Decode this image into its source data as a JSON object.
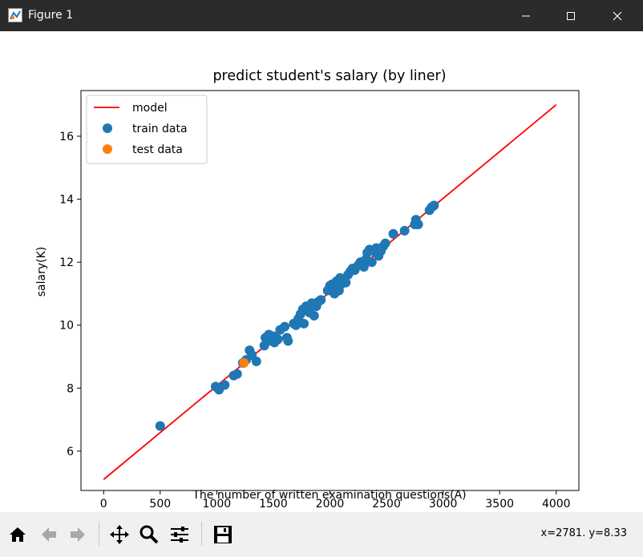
{
  "window": {
    "title": "Figure 1",
    "title_bar_color": "#2b2b2b"
  },
  "chart_data": {
    "type": "scatter",
    "title": "predict student's salary (by liner)",
    "xlabel": "The number of written examination questions(A)",
    "ylabel": "salary(K)",
    "xlim": [
      -200,
      4200
    ],
    "ylim": [
      4.75,
      17.45
    ],
    "xticks": [
      0,
      500,
      1000,
      1500,
      2000,
      2500,
      3000,
      3500,
      4000
    ],
    "yticks": [
      6,
      8,
      10,
      12,
      14,
      16
    ],
    "grid": false,
    "legend_position": "top-left",
    "legend": [
      "model",
      "train data",
      "test data"
    ],
    "model_line": {
      "name": "model",
      "color": "#ff0000",
      "x": [
        0,
        4000
      ],
      "y": [
        5.1,
        17.0
      ]
    },
    "series": [
      {
        "name": "train data",
        "color": "#1f77b4",
        "x": [
          500,
          990,
          1020,
          1070,
          1150,
          1180,
          1230,
          1260,
          1290,
          1310,
          1350,
          1420,
          1430,
          1460,
          1480,
          1500,
          1510,
          1540,
          1560,
          1600,
          1620,
          1630,
          1680,
          1700,
          1720,
          1740,
          1760,
          1770,
          1790,
          1820,
          1840,
          1860,
          1880,
          1900,
          1920,
          1980,
          2000,
          2020,
          2040,
          2060,
          2080,
          2090,
          2100,
          2120,
          2140,
          2160,
          2180,
          2200,
          2220,
          2250,
          2270,
          2300,
          2320,
          2330,
          2350,
          2370,
          2390,
          2410,
          2430,
          2450,
          2470,
          2490,
          2560,
          2660,
          2750,
          2760,
          2780,
          2880,
          2900,
          2920
        ],
        "y": [
          6.8,
          8.05,
          7.95,
          8.1,
          8.4,
          8.45,
          8.8,
          8.9,
          9.2,
          9.05,
          8.85,
          9.35,
          9.6,
          9.7,
          9.5,
          9.65,
          9.45,
          9.55,
          9.85,
          9.95,
          9.6,
          9.5,
          10.05,
          10.0,
          10.2,
          10.35,
          10.5,
          10.05,
          10.6,
          10.4,
          10.7,
          10.3,
          10.6,
          10.75,
          10.8,
          11.1,
          11.25,
          11.3,
          11.0,
          11.4,
          11.1,
          11.5,
          11.3,
          11.45,
          11.35,
          11.6,
          11.7,
          11.8,
          11.75,
          11.9,
          12.0,
          11.85,
          12.1,
          12.3,
          12.4,
          12.0,
          12.35,
          12.45,
          12.2,
          12.35,
          12.5,
          12.6,
          12.9,
          13.0,
          13.2,
          13.35,
          13.2,
          13.65,
          13.75,
          13.8
        ]
      },
      {
        "name": "test data",
        "color": "#ff7f0e",
        "x": [
          1240
        ],
        "y": [
          8.8
        ]
      }
    ]
  },
  "toolbar": {
    "buttons": [
      {
        "name": "home-icon"
      },
      {
        "name": "back-arrow-icon"
      },
      {
        "name": "forward-arrow-icon"
      },
      {
        "name": "pan-icon"
      },
      {
        "name": "zoom-icon"
      },
      {
        "name": "configure-subplots-icon"
      },
      {
        "name": "save-icon"
      }
    ],
    "coords_text": "x=2781. y=8.33"
  }
}
